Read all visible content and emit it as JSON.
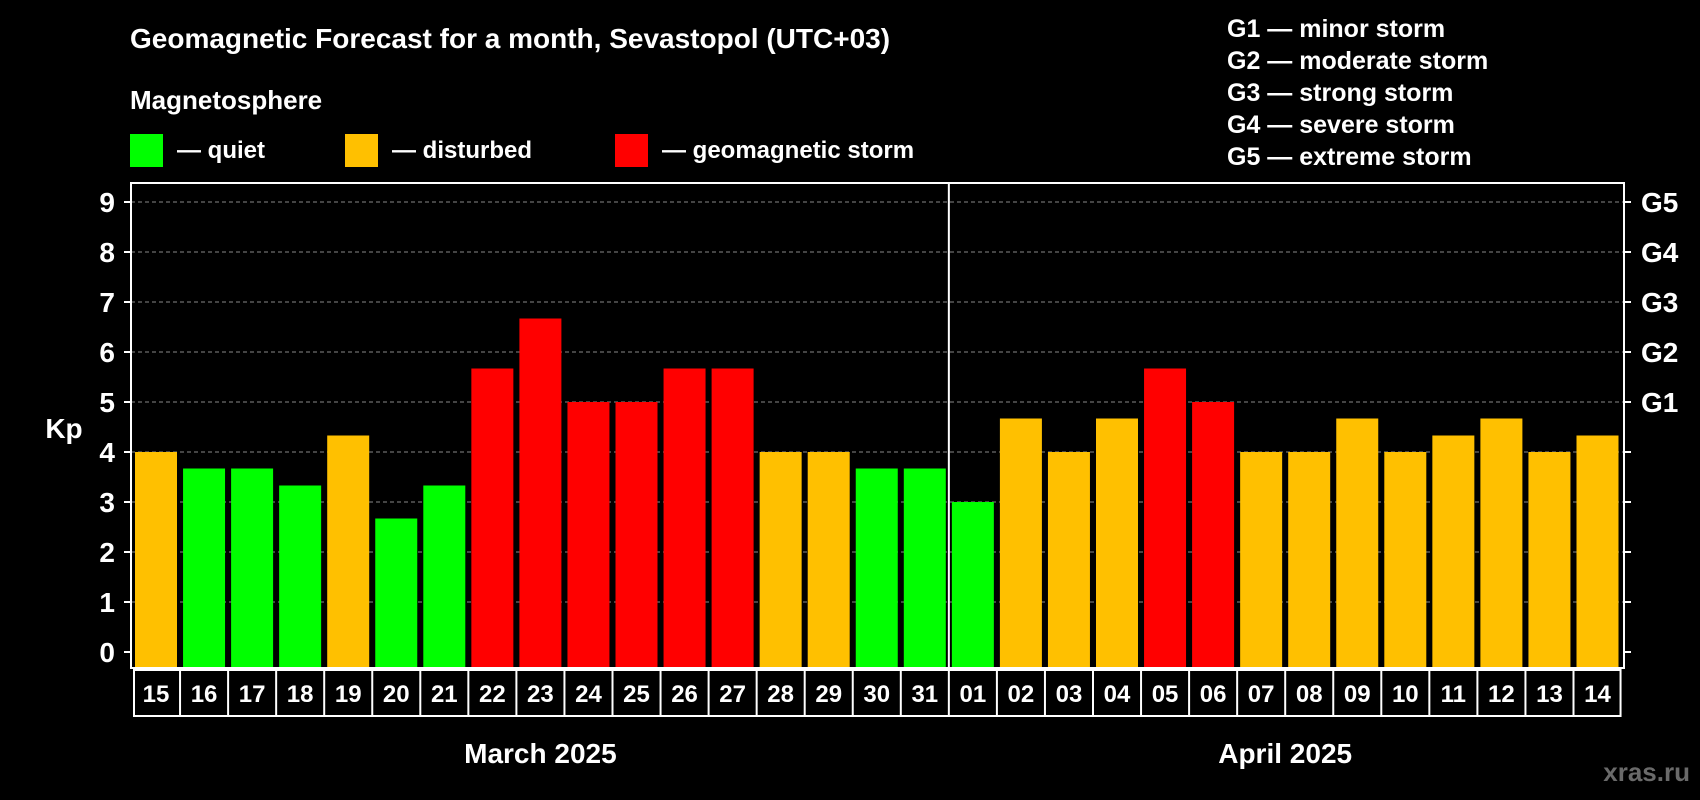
{
  "colors": {
    "background": "#000000",
    "quiet": "#00ff00",
    "disturbed": "#ffc000",
    "storm": "#ff0000",
    "text": "#ffffff",
    "grid": "#888888",
    "watermark": "#6a6a6a"
  },
  "chart_data": {
    "type": "bar",
    "title": "Geomagnetic Forecast for a month, Sevastopol (UTC+03)",
    "ylabel": "Kp",
    "ylim": [
      0,
      9
    ],
    "yticks": [
      "0",
      "1",
      "2",
      "3",
      "4",
      "5",
      "6",
      "7",
      "8",
      "9"
    ],
    "right_axis": [
      {
        "level": 5,
        "label": "G1"
      },
      {
        "level": 6,
        "label": "G2"
      },
      {
        "level": 7,
        "label": "G3"
      },
      {
        "level": 8,
        "label": "G4"
      },
      {
        "level": 9,
        "label": "G5"
      }
    ],
    "grid": true,
    "legend_title": "Magnetosphere",
    "legend": [
      {
        "key": "quiet",
        "label": "— quiet"
      },
      {
        "key": "disturbed",
        "label": "— disturbed"
      },
      {
        "key": "storm",
        "label": "— geomagnetic storm"
      }
    ],
    "storm_scale": [
      "G1 — minor storm",
      "G2 — moderate storm",
      "G3 — strong storm",
      "G4 — severe storm",
      "G5 — extreme storm"
    ],
    "months": [
      {
        "label": "March 2025",
        "start": 0,
        "end": 16
      },
      {
        "label": "April 2025",
        "start": 17,
        "end": 30
      }
    ],
    "categories": [
      "15",
      "16",
      "17",
      "18",
      "19",
      "20",
      "21",
      "22",
      "23",
      "24",
      "25",
      "26",
      "27",
      "28",
      "29",
      "30",
      "31",
      "01",
      "02",
      "03",
      "04",
      "05",
      "06",
      "07",
      "08",
      "09",
      "10",
      "11",
      "12",
      "13",
      "14"
    ],
    "values": [
      4,
      3.67,
      3.67,
      3.33,
      4.33,
      2.67,
      3.33,
      5.67,
      6.67,
      5,
      5,
      5.67,
      5.67,
      4,
      4,
      3.67,
      3.67,
      3,
      4.67,
      4,
      4.67,
      5.67,
      5,
      4,
      4,
      4.67,
      4,
      4.33,
      4.67,
      4,
      4.33
    ],
    "status": [
      "disturbed",
      "quiet",
      "quiet",
      "quiet",
      "disturbed",
      "quiet",
      "quiet",
      "storm",
      "storm",
      "storm",
      "storm",
      "storm",
      "storm",
      "disturbed",
      "disturbed",
      "quiet",
      "quiet",
      "quiet",
      "disturbed",
      "disturbed",
      "disturbed",
      "storm",
      "storm",
      "disturbed",
      "disturbed",
      "disturbed",
      "disturbed",
      "disturbed",
      "disturbed",
      "disturbed",
      "disturbed"
    ]
  },
  "watermark": "xras.ru"
}
